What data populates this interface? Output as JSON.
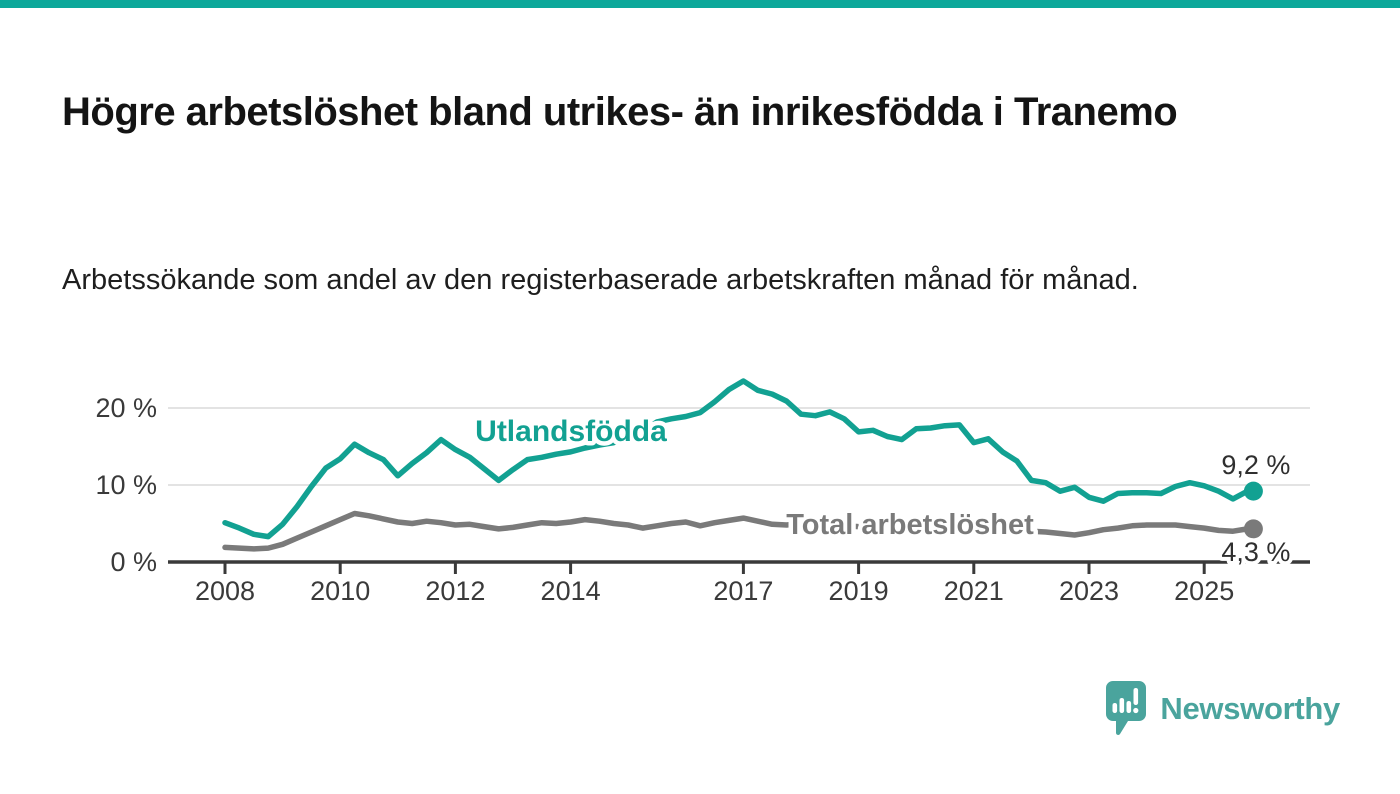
{
  "page": {
    "top_bar_color": "#0CA89A",
    "background_color": "#ffffff"
  },
  "header": {
    "title": "Högre arbetslöshet bland utrikes- än inrikesfödda i Tranemo",
    "subtitle": "Arbetssökande som andel av den registerbaserade arbetskraften månad för månad."
  },
  "chart_data": {
    "type": "line",
    "title": "",
    "xlabel": "",
    "ylabel": "",
    "unit": "%",
    "grid": "horizontal",
    "legend_position": "inline-labels-on-lines",
    "xlim": [
      2007.9,
      2026.2
    ],
    "ylim": [
      0,
      24.5
    ],
    "x_years": [
      2008.0,
      2008.25,
      2008.5,
      2008.75,
      2009.0,
      2009.25,
      2009.5,
      2009.75,
      2010.0,
      2010.25,
      2010.5,
      2010.75,
      2011.0,
      2011.25,
      2011.5,
      2011.75,
      2012.0,
      2012.25,
      2012.5,
      2012.75,
      2013.0,
      2013.25,
      2013.5,
      2013.75,
      2014.0,
      2014.25,
      2014.5,
      2014.75,
      2015.0,
      2015.25,
      2015.5,
      2015.75,
      2016.0,
      2016.25,
      2016.5,
      2016.75,
      2017.0,
      2017.25,
      2017.5,
      2017.75,
      2018.0,
      2018.25,
      2018.5,
      2018.75,
      2019.0,
      2019.25,
      2019.5,
      2019.75,
      2020.0,
      2020.25,
      2020.5,
      2020.75,
      2021.0,
      2021.25,
      2021.5,
      2021.75,
      2022.0,
      2022.25,
      2022.5,
      2022.75,
      2023.0,
      2023.25,
      2023.5,
      2023.75,
      2024.0,
      2024.25,
      2024.5,
      2024.75,
      2025.0,
      2025.25,
      2025.5,
      2025.75
    ],
    "series": [
      {
        "name": "Utlandsfödda",
        "color": "#12A192",
        "end_label": "9,2 %",
        "end_value": 9.2,
        "values": [
          5.1,
          4.4,
          3.6,
          3.3,
          4.9,
          7.2,
          9.8,
          12.2,
          13.4,
          15.3,
          14.2,
          13.3,
          11.2,
          12.8,
          14.2,
          15.9,
          14.6,
          13.6,
          12.1,
          10.6,
          12.0,
          13.3,
          13.6,
          14.0,
          14.3,
          14.8,
          15.2,
          15.5,
          16.2,
          17.0,
          18.2,
          18.6,
          18.9,
          19.4,
          20.8,
          22.4,
          23.5,
          22.3,
          21.8,
          20.9,
          19.2,
          19.0,
          19.5,
          18.6,
          16.9,
          17.1,
          16.3,
          15.9,
          17.3,
          17.4,
          17.7,
          17.8,
          15.5,
          16.0,
          14.3,
          13.1,
          10.6,
          10.3,
          9.2,
          9.7,
          8.4,
          7.9,
          8.9,
          9.0,
          9.0,
          8.9,
          9.8,
          10.3,
          9.9,
          9.2,
          8.2,
          9.2
        ]
      },
      {
        "name": "Total arbetslöshet",
        "color": "#7A7A7A",
        "end_label": "4,3 %",
        "end_value": 4.3,
        "values": [
          1.9,
          1.8,
          1.7,
          1.8,
          2.3,
          3.1,
          3.9,
          4.7,
          5.5,
          6.3,
          6.0,
          5.6,
          5.2,
          5.0,
          5.3,
          5.1,
          4.8,
          4.9,
          4.6,
          4.3,
          4.5,
          4.8,
          5.1,
          5.0,
          5.2,
          5.5,
          5.3,
          5.0,
          4.8,
          4.4,
          4.7,
          5.0,
          5.2,
          4.7,
          5.1,
          5.4,
          5.7,
          5.3,
          4.9,
          4.8,
          5.0,
          4.9,
          4.8,
          4.7,
          4.6,
          4.7,
          4.8,
          4.9,
          5.0,
          5.4,
          5.5,
          5.3,
          5.0,
          4.8,
          4.5,
          4.2,
          4.0,
          3.9,
          3.7,
          3.5,
          3.8,
          4.2,
          4.4,
          4.7,
          4.8,
          4.8,
          4.8,
          4.6,
          4.4,
          4.1,
          4.0,
          4.3
        ]
      }
    ],
    "yticks": [
      {
        "value": 0,
        "label": "0 %"
      },
      {
        "value": 10,
        "label": "10 %"
      },
      {
        "value": 20,
        "label": "20 %"
      }
    ],
    "xticks": [
      {
        "value": 2008,
        "label": "2008"
      },
      {
        "value": 2010,
        "label": "2010"
      },
      {
        "value": 2012,
        "label": "2012"
      },
      {
        "value": 2014,
        "label": "2014"
      },
      {
        "value": 2017,
        "label": "2017"
      },
      {
        "value": 2019,
        "label": "2019"
      },
      {
        "value": 2021,
        "label": "2021"
      },
      {
        "value": 2023,
        "label": "2023"
      },
      {
        "value": 2025,
        "label": "2025"
      }
    ],
    "colors": {
      "gridline": "#DADADA",
      "axis": "#3A3A3A",
      "tick_label": "#3A3A3A",
      "value_label": "#2F2F2F"
    }
  },
  "footer": {
    "brand_name": "Newsworthy",
    "brand_color": "#4AA49D"
  }
}
